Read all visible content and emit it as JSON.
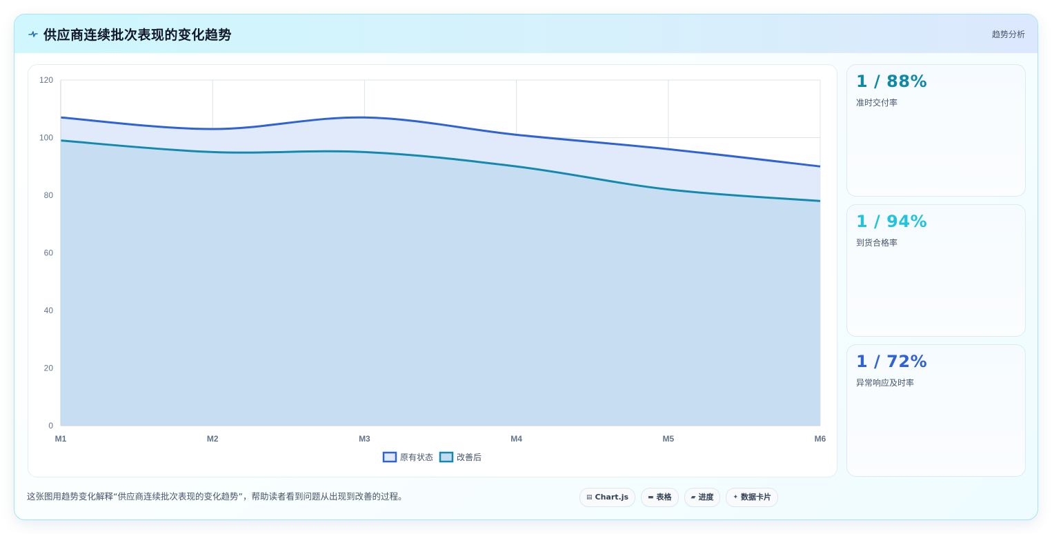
{
  "header": {
    "title": "供应商连续批次表现的变化趋势",
    "icon": "pulse-icon",
    "tag": "趋势分析"
  },
  "chart_data": {
    "type": "area",
    "x": [
      "M1",
      "M2",
      "M3",
      "M4",
      "M5",
      "M6"
    ],
    "ylim": [
      0,
      120
    ],
    "yticks": [
      "0",
      "20",
      "40",
      "60",
      "80",
      "100",
      "120"
    ],
    "grid": true,
    "legend_position": "bottom",
    "series": [
      {
        "name": "原有状态",
        "values": [
          107,
          103,
          107,
          101,
          96,
          90
        ],
        "color": "#2f63d3",
        "fill": "#dfe9fb"
      },
      {
        "name": "改善后",
        "values": [
          99,
          95,
          95,
          90,
          82,
          78
        ],
        "color": "#1389b0",
        "fill": "#c4dcf1"
      }
    ]
  },
  "kpis": [
    {
      "value": "1 / 88%",
      "label": "准时交付率",
      "color": "#0e8aa7"
    },
    {
      "value": "1 / 94%",
      "label": "到货合格率",
      "color": "#22c3de"
    },
    {
      "value": "1 / 72%",
      "label": "异常响应及时率",
      "color": "#2f63d3"
    }
  ],
  "footer": {
    "text": "这张图用趋势变化解释“供应商连续批次表现的变化趋势”，帮助读者看到问题从出现到改善的过程。",
    "chips": [
      {
        "icon": "▤",
        "label": "Chart.js"
      },
      {
        "icon": "▬",
        "label": "表格"
      },
      {
        "icon": "▰",
        "label": "进度"
      },
      {
        "icon": "✦",
        "label": "数据卡片"
      }
    ]
  }
}
